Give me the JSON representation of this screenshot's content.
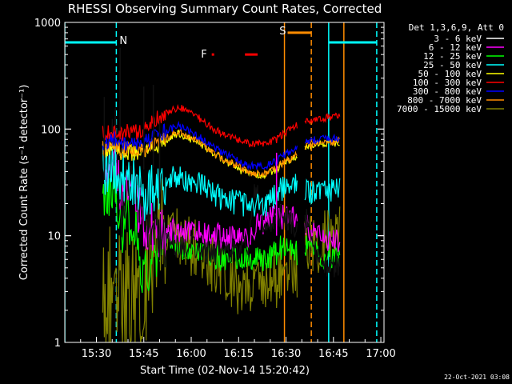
{
  "chart_data": {
    "type": "line",
    "title": "RHESSI Observing Summary Count Rates, Corrected",
    "xlabel": "Start Time (02-Nov-14 15:20:42)",
    "ylabel": "Corrected Count Rate (s⁻¹ detector⁻¹)",
    "y_scale": "log",
    "ylim": [
      1,
      1000
    ],
    "xlim_minutes_after_1520": [
      0,
      101
    ],
    "x_tick_labels": [
      "15:30",
      "15:45",
      "16:00",
      "16:15",
      "16:30",
      "16:45",
      "17:00"
    ],
    "x_tick_minutes": [
      10,
      25,
      40,
      55,
      70,
      85,
      100
    ],
    "y_tick_labels": [
      "1",
      "10",
      "100",
      "1000"
    ],
    "y_tick_values": [
      1,
      10,
      100,
      1000
    ],
    "legend_title": "Det 1,3,6,9, Att 0",
    "legend_position": "outside-right",
    "x_time_base": "15:20",
    "series": [
      {
        "name": "3 - 6 keV",
        "color": "#000000",
        "t": [
          12,
          16,
          18,
          20,
          23,
          25,
          29,
          32,
          36,
          40,
          45,
          50,
          55,
          58,
          60,
          64,
          67,
          69,
          73.5,
          77,
          80,
          83,
          86,
          87
        ],
        "y": [
          50,
          120,
          15,
          35,
          25,
          15,
          10,
          9,
          8,
          8,
          7,
          7,
          7,
          8,
          30,
          10,
          15,
          15,
          12,
          14,
          6,
          5,
          5,
          6
        ]
      },
      {
        "name": "6 - 12 keV",
        "color": "#ff00ff",
        "t": [
          12,
          16,
          18,
          20,
          23,
          25,
          29,
          32,
          36,
          40,
          45,
          50,
          55,
          58,
          60,
          64,
          67,
          69,
          73.5,
          77,
          80,
          83,
          86,
          87
        ],
        "y": [
          40,
          60,
          25,
          30,
          20,
          12,
          11,
          11,
          11,
          11,
          10,
          10,
          9,
          9,
          12,
          14,
          15,
          15,
          15,
          12,
          10,
          9,
          9,
          9
        ]
      },
      {
        "name": "12 - 25 keV",
        "color": "#00ff00",
        "t": [
          12,
          16,
          18,
          20,
          23,
          25,
          29,
          32,
          36,
          40,
          45,
          50,
          55,
          58,
          60,
          64,
          67,
          69,
          73.5,
          77,
          80,
          83,
          86,
          87
        ],
        "y": [
          25,
          30,
          12,
          15,
          10,
          4,
          7,
          9,
          8,
          7,
          7,
          6,
          6,
          6,
          6,
          6,
          7,
          8,
          7,
          8,
          7,
          6,
          6,
          6
        ]
      },
      {
        "name": "25 - 50 keV",
        "color": "#00ffff",
        "t": [
          12,
          16,
          18,
          20,
          23,
          25,
          29,
          32,
          36,
          40,
          45,
          50,
          55,
          58,
          60,
          64,
          67,
          69,
          73.5,
          77,
          80,
          83,
          86,
          87
        ],
        "y": [
          40,
          45,
          35,
          35,
          30,
          25,
          28,
          33,
          36,
          32,
          28,
          22,
          20,
          19,
          19,
          20,
          24,
          28,
          30,
          26,
          26,
          27,
          28,
          28
        ]
      },
      {
        "name": "50 - 100 keV",
        "color": "#ffff00",
        "t": [
          12,
          16,
          18,
          20,
          23,
          25,
          29,
          32,
          36,
          40,
          45,
          50,
          55,
          58,
          60,
          64,
          67,
          69,
          73.5,
          77,
          80,
          83,
          86,
          87
        ],
        "y": [
          60,
          70,
          55,
          60,
          60,
          60,
          70,
          80,
          90,
          80,
          65,
          52,
          42,
          38,
          37,
          38,
          42,
          48,
          55,
          70,
          72,
          74,
          74,
          75
        ]
      },
      {
        "name": "100 - 300 keV",
        "color": "#ff0000",
        "t": [
          12,
          16,
          18,
          20,
          23,
          25,
          29,
          32,
          36,
          40,
          45,
          50,
          55,
          58,
          60,
          64,
          67,
          69,
          73.5,
          77,
          80,
          83,
          86,
          87
        ],
        "y": [
          90,
          100,
          90,
          95,
          95,
          100,
          125,
          140,
          160,
          145,
          110,
          90,
          78,
          73,
          72,
          74,
          80,
          90,
          110,
          120,
          125,
          128,
          132,
          135
        ]
      },
      {
        "name": "300 - 800 keV",
        "color": "#0000ff",
        "t": [
          12,
          16,
          18,
          20,
          23,
          25,
          29,
          32,
          36,
          40,
          45,
          50,
          55,
          58,
          60,
          64,
          67,
          69,
          73.5,
          77,
          80,
          83,
          86,
          87
        ],
        "y": [
          70,
          80,
          70,
          75,
          72,
          75,
          85,
          95,
          110,
          95,
          75,
          60,
          50,
          46,
          45,
          46,
          50,
          56,
          68,
          78,
          80,
          82,
          82,
          82
        ]
      },
      {
        "name": "800 - 7000 keV",
        "color": "#ff8c00",
        "t": [
          12,
          16,
          18,
          20,
          23,
          25,
          29,
          32,
          36,
          40,
          45,
          50,
          55,
          58,
          60,
          64,
          67,
          69,
          73.5,
          77,
          80,
          83,
          86,
          87
        ],
        "y": [
          65,
          72,
          62,
          66,
          63,
          65,
          75,
          84,
          95,
          84,
          66,
          53,
          44,
          40,
          38,
          39,
          43,
          48,
          58,
          72,
          74,
          76,
          76,
          77
        ]
      },
      {
        "name": "7000 - 15000 keV",
        "color": "#808000",
        "t": [
          12,
          16,
          18,
          20,
          23,
          25,
          29,
          32,
          36,
          40,
          45,
          50,
          55,
          58,
          60,
          64,
          67,
          69,
          73.5,
          77,
          80,
          83,
          86,
          87
        ],
        "y": [
          2,
          4,
          3,
          3,
          2.5,
          3,
          8,
          9,
          10,
          8,
          6,
          5,
          3,
          3,
          3,
          4,
          4,
          5,
          5,
          9,
          8,
          10,
          10,
          10
        ]
      }
    ],
    "data_gaps_minutes": [
      [
        73.5,
        76
      ]
    ],
    "spikes": [
      {
        "t": 17.5,
        "y": 580,
        "color": "#000000"
      },
      {
        "t": 25,
        "y": 250,
        "color": "#000000"
      },
      {
        "t": 28,
        "y": 260,
        "color": "#000000"
      },
      {
        "t": 30,
        "y": 120,
        "color": "#000000"
      },
      {
        "t": 12.5,
        "y": 200,
        "color": "#000000"
      },
      {
        "t": 67,
        "y": 60,
        "color": "#ff00ff"
      }
    ],
    "annotations": {
      "vlines": [
        {
          "t": 0,
          "color": "#00ffff",
          "style": "solid"
        },
        {
          "t": 16.3,
          "color": "#00ffff",
          "style": "dashed"
        },
        {
          "t": 69.5,
          "color": "#ff8c00",
          "style": "solid"
        },
        {
          "t": 78,
          "color": "#ff8c00",
          "style": "dashed"
        },
        {
          "t": 83.5,
          "color": "#00ffff",
          "style": "solid"
        },
        {
          "t": 88.3,
          "color": "#ff8c00",
          "style": "solid"
        },
        {
          "t": 98.7,
          "color": "#00ffff",
          "style": "dashed"
        }
      ],
      "bars": [
        {
          "t0": 0,
          "t1": 16.3,
          "y": 650,
          "color": "#00ffff",
          "label": "N"
        },
        {
          "t0": 83.5,
          "t1": 98.7,
          "y": 650,
          "color": "#00ffff",
          "label": ""
        },
        {
          "t0": 70.5,
          "t1": 78,
          "y": 800,
          "color": "#ff8c00",
          "label": "S"
        },
        {
          "t0": 46.5,
          "t1": 47.2,
          "y": 500,
          "color": "#ff0000",
          "label": "F"
        },
        {
          "t0": 57,
          "t1": 61,
          "y": 500,
          "color": "#ff0000",
          "label": ""
        }
      ]
    },
    "timestamp": "22-Oct-2021 03:08"
  }
}
